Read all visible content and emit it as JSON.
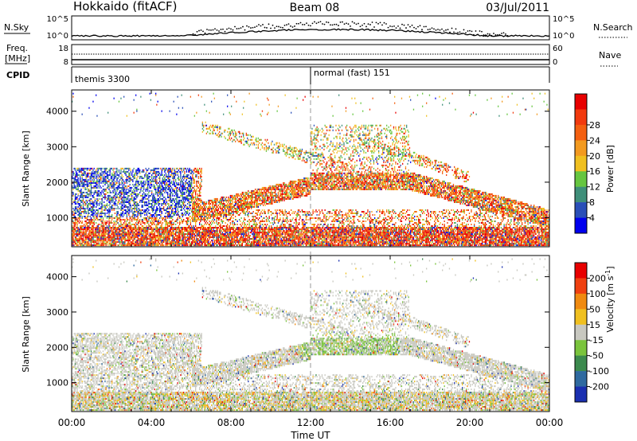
{
  "header": {
    "site": "Hokkaido (fitACF)",
    "beam": "Beam 08",
    "date": "03/Jul/2011"
  },
  "noise_panel": {
    "left_label": "N.Sky",
    "right_label": "N.Search",
    "tick_top": "10^5",
    "tick_bottom": "10^0"
  },
  "freq_panel": {
    "left_label_1": "Freq.",
    "left_label_2": "[MHz]",
    "right_label": "Nave",
    "left_ticks": [
      "18",
      "8"
    ],
    "right_ticks": [
      "60",
      "0"
    ]
  },
  "cpid_panel": {
    "label": "CPID",
    "modes": [
      {
        "name": "themis 3300",
        "start_ut": 0
      },
      {
        "name": "normal (fast) 151",
        "start_ut": 12
      }
    ]
  },
  "chart_data": [
    {
      "type": "heatmap",
      "quantity": "Power",
      "ylabel": "Slant Range [km]",
      "ylim": [
        180,
        4600
      ],
      "yticks": [
        1000,
        2000,
        3000,
        4000
      ],
      "xlim": [
        0,
        24
      ],
      "colorbar": {
        "label": "Power [dB]",
        "ticks": [
          "4",
          "8",
          "12",
          "16",
          "20",
          "24",
          "28"
        ],
        "colors": [
          "#0000ee",
          "#2a4fb8",
          "#3f8f7a",
          "#66c640",
          "#f0c020",
          "#f39a20",
          "#f46010",
          "#f23a0e",
          "#e80000"
        ]
      }
    },
    {
      "type": "heatmap",
      "quantity": "Velocity",
      "ylabel": "Slant Range [km]",
      "ylim": [
        180,
        4600
      ],
      "yticks": [
        1000,
        2000,
        3000,
        4000
      ],
      "xlim": [
        0,
        24
      ],
      "colorbar": {
        "label": "Velocity [m s",
        "label_sup": "-1",
        "label_end": "]",
        "ticks": [
          "200",
          "100",
          "50",
          "15",
          "-15",
          "-50",
          "-100",
          "-200"
        ],
        "colors": [
          "#1a2fb0",
          "#2f6aa0",
          "#3c8a4e",
          "#7ac43c",
          "#c8c8c0",
          "#f0c020",
          "#f08a10",
          "#f04010",
          "#e80000"
        ]
      }
    }
  ],
  "x_axis": {
    "label": "Time UT",
    "ticks": [
      "00:00",
      "04:00",
      "08:00",
      "12:00",
      "16:00",
      "20:00",
      "00:00"
    ]
  }
}
